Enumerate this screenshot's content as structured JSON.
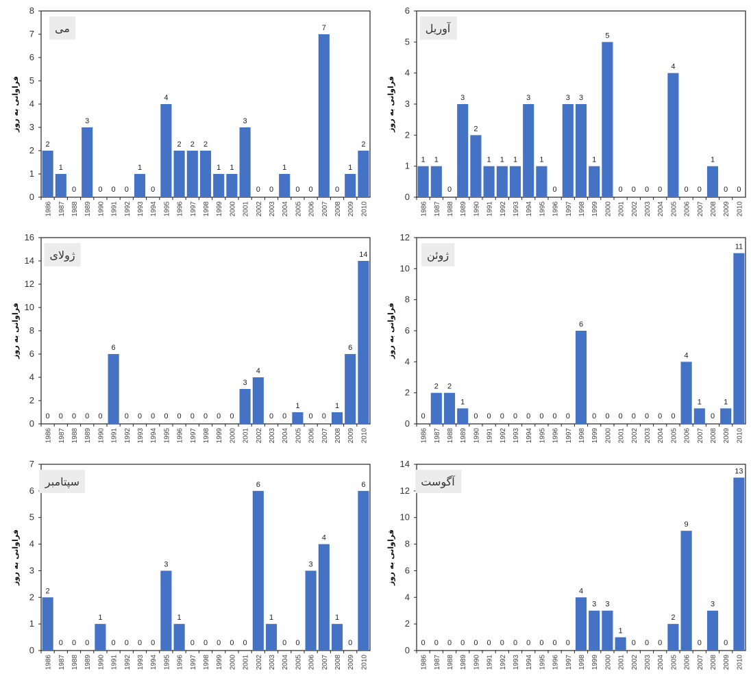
{
  "chart_data": [
    {
      "type": "bar",
      "title": "می",
      "ylabel": "فراوانی به روز",
      "ylim": [
        0,
        8
      ],
      "yticks": [
        0,
        1,
        2,
        3,
        4,
        5,
        6,
        7,
        8
      ],
      "categories": [
        "1986",
        "1987",
        "1988",
        "1989",
        "1990",
        "1991",
        "1992",
        "1993",
        "1994",
        "1995",
        "1996",
        "1997",
        "1998",
        "1999",
        "2000",
        "2001",
        "2002",
        "2003",
        "2004",
        "2005",
        "2006",
        "2007",
        "2008",
        "2009",
        "2010"
      ],
      "values": [
        2,
        1,
        0,
        3,
        0,
        0,
        0,
        1,
        0,
        4,
        2,
        2,
        2,
        1,
        1,
        3,
        0,
        0,
        1,
        0,
        0,
        7,
        0,
        1,
        2
      ],
      "bar_color": "#4472c4",
      "grid": false,
      "legend": "none"
    },
    {
      "type": "bar",
      "title": "آوریل",
      "ylabel": "فراوانی به روز",
      "ylim": [
        0,
        6
      ],
      "yticks": [
        0,
        1,
        2,
        3,
        4,
        5,
        6
      ],
      "categories": [
        "1986",
        "1987",
        "1988",
        "1989",
        "1990",
        "1991",
        "1992",
        "1993",
        "1994",
        "1995",
        "1996",
        "1997",
        "1998",
        "1999",
        "2000",
        "2001",
        "2002",
        "2003",
        "2004",
        "2005",
        "2006",
        "2007",
        "2008",
        "2009",
        "2010"
      ],
      "values": [
        1,
        1,
        0,
        3,
        2,
        1,
        1,
        1,
        3,
        1,
        0,
        3,
        3,
        1,
        5,
        0,
        0,
        0,
        0,
        4,
        0,
        0,
        1,
        0,
        0
      ],
      "bar_color": "#4472c4",
      "grid": false,
      "legend": "none"
    },
    {
      "type": "bar",
      "title": "ژولای",
      "ylabel": "فراوانی به روز",
      "ylim": [
        0,
        16
      ],
      "yticks": [
        0,
        2,
        4,
        6,
        8,
        10,
        12,
        14,
        16
      ],
      "categories": [
        "1986",
        "1987",
        "1988",
        "1989",
        "1990",
        "1991",
        "1992",
        "1993",
        "1994",
        "1995",
        "1996",
        "1997",
        "1998",
        "1999",
        "2000",
        "2001",
        "2002",
        "2003",
        "2004",
        "2005",
        "2006",
        "2007",
        "2008",
        "2009",
        "2010"
      ],
      "values": [
        0,
        0,
        0,
        0,
        0,
        6,
        0,
        0,
        0,
        0,
        0,
        0,
        0,
        0,
        0,
        3,
        4,
        0,
        0,
        1,
        0,
        0,
        1,
        6,
        14
      ],
      "bar_color": "#4472c4",
      "grid": false,
      "legend": "none"
    },
    {
      "type": "bar",
      "title": "ژوئن",
      "ylabel": "فراوانی به روز",
      "ylim": [
        0,
        12
      ],
      "yticks": [
        0,
        2,
        4,
        6,
        8,
        10,
        12
      ],
      "categories": [
        "1986",
        "1987",
        "1988",
        "1989",
        "1990",
        "1991",
        "1992",
        "1993",
        "1994",
        "1995",
        "1996",
        "1997",
        "1998",
        "1999",
        "2000",
        "2001",
        "2002",
        "2003",
        "2004",
        "2005",
        "2006",
        "2007",
        "2008",
        "2009",
        "2010"
      ],
      "values": [
        0,
        2,
        2,
        1,
        0,
        0,
        0,
        0,
        0,
        0,
        0,
        0,
        6,
        0,
        0,
        0,
        0,
        0,
        0,
        0,
        4,
        1,
        0,
        1,
        11
      ],
      "bar_color": "#4472c4",
      "grid": false,
      "legend": "none"
    },
    {
      "type": "bar",
      "title": "سپتامبر",
      "ylabel": "فراوانی به روز",
      "ylim": [
        0,
        7
      ],
      "yticks": [
        0,
        1,
        2,
        3,
        4,
        5,
        6,
        7
      ],
      "categories": [
        "1986",
        "1987",
        "1988",
        "1989",
        "1990",
        "1991",
        "1992",
        "1993",
        "1994",
        "1995",
        "1996",
        "1997",
        "1998",
        "1999",
        "2000",
        "2001",
        "2002",
        "2003",
        "2004",
        "2005",
        "2006",
        "2007",
        "2008",
        "2009",
        "2010"
      ],
      "values": [
        2,
        0,
        0,
        0,
        1,
        0,
        0,
        0,
        0,
        3,
        1,
        0,
        0,
        0,
        0,
        0,
        6,
        1,
        0,
        0,
        3,
        4,
        1,
        0,
        6
      ],
      "bar_color": "#4472c4",
      "grid": false,
      "legend": "none"
    },
    {
      "type": "bar",
      "title": "آگوست",
      "ylabel": "فراوانی به روز",
      "ylim": [
        0,
        14
      ],
      "yticks": [
        0,
        2,
        4,
        6,
        8,
        10,
        12,
        14
      ],
      "categories": [
        "1986",
        "1987",
        "1988",
        "1989",
        "1990",
        "1991",
        "1992",
        "1993",
        "1994",
        "1995",
        "1996",
        "1997",
        "1998",
        "1999",
        "2000",
        "2001",
        "2002",
        "2003",
        "2004",
        "2005",
        "2006",
        "2007",
        "2008",
        "2009",
        "2010"
      ],
      "values": [
        0,
        0,
        0,
        0,
        0,
        0,
        0,
        0,
        0,
        0,
        0,
        0,
        4,
        3,
        3,
        1,
        0,
        0,
        0,
        2,
        9,
        0,
        3,
        0,
        13
      ],
      "bar_color": "#4472c4",
      "grid": false,
      "legend": "none"
    }
  ]
}
